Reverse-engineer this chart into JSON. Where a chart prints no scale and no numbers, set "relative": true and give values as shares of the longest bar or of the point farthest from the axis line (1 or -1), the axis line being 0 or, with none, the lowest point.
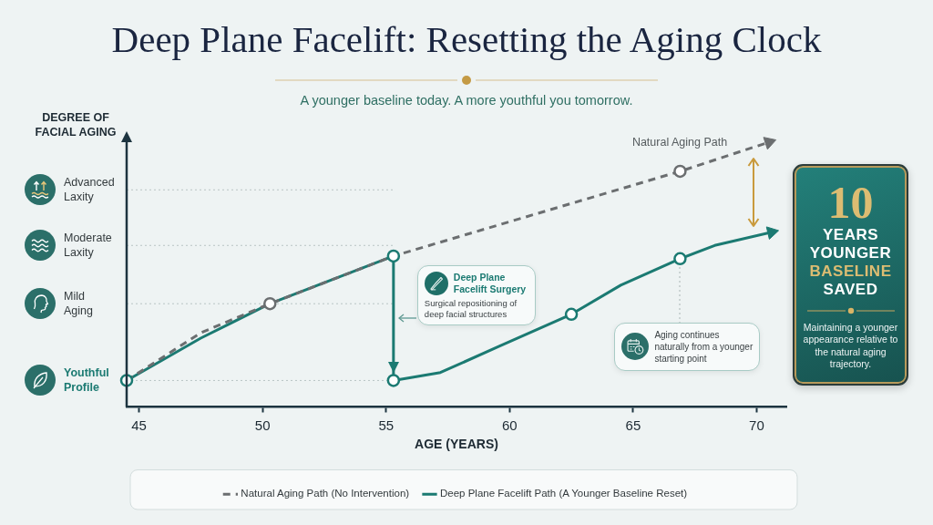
{
  "chart_data": {
    "type": "line",
    "title": "Deep Plane Facelift: Resetting the Aging Clock",
    "subtitle": "A younger baseline today. A more youthful you tomorrow.",
    "xlabel": "AGE (YEARS)",
    "ylabel": "DEGREE OF FACIAL AGING",
    "relative": true,
    "xlim": [
      44.5,
      71.2
    ],
    "xticks": [
      45,
      50,
      55,
      60,
      65,
      70
    ],
    "legend": "bottom",
    "ref_lines": [
      {
        "axis": "y",
        "value": 0.1,
        "label": "Youthful Profile",
        "line_style": "dotted"
      },
      {
        "axis": "y",
        "value": 0.39,
        "label": "Mild Aging",
        "line_style": "dotted"
      },
      {
        "axis": "y",
        "value": 0.61,
        "label": "Moderate Laxity",
        "line_style": "dotted"
      },
      {
        "axis": "y",
        "value": 0.82,
        "label": "Advanced Laxity",
        "line_style": "dotted"
      }
    ],
    "series": [
      {
        "name": "Natural Aging Path (No Intervention)",
        "color": "#6b6e70",
        "line_style": "dashed",
        "marker": "none",
        "x": [
          44.5,
          47.5,
          50.3,
          55.3,
          66.9,
          70.5
        ],
        "values": [
          0.1,
          0.28,
          0.39,
          0.57,
          0.89,
          1
        ]
      },
      {
        "name": "Deep Plane Facelift Path (A Younger Baseline Reset)",
        "color": "#1b7a72",
        "line_style": "solid",
        "marker": "none",
        "x": [
          44.5,
          47.5,
          50.3,
          55.3,
          55.3,
          57.2,
          59.6,
          62.5,
          64.5,
          66.9,
          68.3,
          70.6
        ],
        "values": [
          0.1,
          0.26,
          0.39,
          0.57,
          0.1,
          0.13,
          0.23,
          0.35,
          0.46,
          0.56,
          0.61,
          0.66
        ]
      },
      {
        "type": "scatter",
        "marker": "circle",
        "x": [
          44.5,
          50.3,
          55.3,
          55.3,
          62.5,
          66.9,
          66.9
        ],
        "values": [
          0.1,
          0.39,
          0.57,
          0.1,
          0.35,
          0.89,
          0.56
        ],
        "colors": [
          "#1b7a72",
          "#6b6e70",
          "#1b7a72",
          "#1b7a72",
          "#1b7a72",
          "#6b6e70",
          "#1b7a72"
        ]
      }
    ],
    "annotations": [
      "Natural Aging Path",
      "Deep Plane Facelift Surgery",
      "Surgical repositioning of deep facial structures",
      "Aging continues naturally from a younger starting point",
      "10",
      "YEARS YOUNGER",
      "BASELINE",
      "SAVED",
      "Maintaining a younger appearance relative to the natural aging trajectory."
    ]
  }
}
